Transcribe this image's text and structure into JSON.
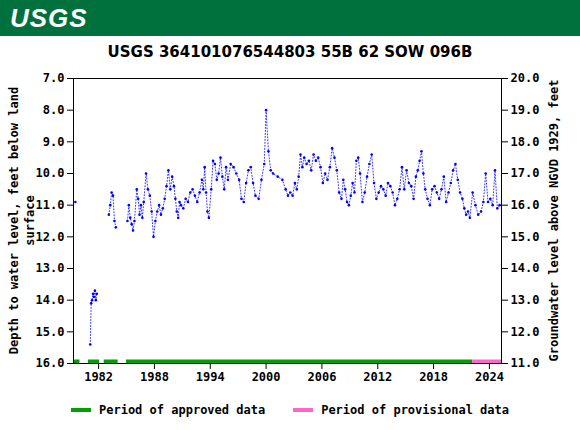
{
  "header": {
    "text": "USGS",
    "color": "#00713d"
  },
  "chart_data": {
    "type": "line",
    "title": "USGS 364101076544803 55B 62 SOW 096B",
    "y_label": "Depth to water level, feet below land\nsurface",
    "y2_label": "Groundwater level above NGVD 1929, feet",
    "xlim": [
      1979.3,
      2025.3
    ],
    "xticks": [
      1982,
      1988,
      1994,
      2000,
      2006,
      2012,
      2018,
      2024
    ],
    "ylim": [
      16,
      7
    ],
    "yticks": [
      {
        "value": 7,
        "label": "7.0"
      },
      {
        "value": 8,
        "label": "8.0"
      },
      {
        "value": 9,
        "label": "9.0"
      },
      {
        "value": 10,
        "label": "10.0"
      },
      {
        "value": 11,
        "label": "11.0"
      },
      {
        "value": 12,
        "label": "12.0"
      },
      {
        "value": 13,
        "label": "13.0"
      },
      {
        "value": 14,
        "label": "14.0"
      },
      {
        "value": 15,
        "label": "15.0"
      },
      {
        "value": 16,
        "label": "16.0"
      }
    ],
    "y2lim": [
      11,
      20
    ],
    "y2ticks": [
      {
        "value": 11,
        "label": "11.0"
      },
      {
        "value": 12,
        "label": "12.0"
      },
      {
        "value": 13,
        "label": "13.0"
      },
      {
        "value": 14,
        "label": "14.0"
      },
      {
        "value": 15,
        "label": "15.0"
      },
      {
        "value": 16,
        "label": "16.0"
      },
      {
        "value": 17,
        "label": "17.0"
      },
      {
        "value": 18,
        "label": "18.0"
      },
      {
        "value": 19,
        "label": "19.0"
      },
      {
        "value": 20,
        "label": "20.0"
      }
    ],
    "grid": false,
    "x": [
      1979.5,
      1980.2,
      1981.1,
      1981.2,
      1981.3,
      1981.4,
      1981.5,
      1981.6,
      1981.7,
      1981.8,
      1982.5,
      1983.1,
      1983.25,
      1983.4,
      1983.55,
      1983.7,
      1983.85,
      1984.5,
      1985.1,
      1985.25,
      1985.4,
      1985.55,
      1985.7,
      1985.85,
      1986.1,
      1986.25,
      1986.4,
      1986.55,
      1986.7,
      1986.85,
      1987.1,
      1987.3,
      1987.5,
      1987.7,
      1987.9,
      1988.1,
      1988.3,
      1988.5,
      1988.7,
      1988.9,
      1989.1,
      1989.3,
      1989.5,
      1989.7,
      1989.9,
      1990.1,
      1990.25,
      1990.4,
      1990.55,
      1990.7,
      1990.85,
      1991.1,
      1991.35,
      1991.6,
      1991.85,
      1992.1,
      1992.35,
      1992.6,
      1992.85,
      1993.1,
      1993.25,
      1993.4,
      1993.55,
      1993.7,
      1993.85,
      1994.1,
      1994.3,
      1994.5,
      1994.7,
      1994.9,
      1995.1,
      1995.3,
      1995.5,
      1995.7,
      1995.9,
      1996.2,
      1996.5,
      1996.8,
      1997.1,
      1997.35,
      1997.6,
      1997.85,
      1998.1,
      1998.35,
      1998.6,
      1998.85,
      1999.2,
      1999.5,
      1999.8,
      2000.0,
      2000.25,
      2000.5,
      2000.75,
      2001.25,
      2001.75,
      2002.1,
      2002.35,
      2002.6,
      2002.85,
      2003.1,
      2003.3,
      2003.5,
      2003.7,
      2003.9,
      2004.1,
      2004.35,
      2004.6,
      2004.85,
      2005.1,
      2005.35,
      2005.6,
      2005.85,
      2006.1,
      2006.35,
      2006.6,
      2006.85,
      2007.1,
      2007.35,
      2007.6,
      2007.85,
      2008.1,
      2008.3,
      2008.5,
      2008.7,
      2008.9,
      2009.1,
      2009.3,
      2009.5,
      2009.7,
      2009.9,
      2010.1,
      2010.35,
      2010.6,
      2010.85,
      2011.1,
      2011.35,
      2011.6,
      2011.85,
      2012.1,
      2012.35,
      2012.6,
      2012.85,
      2013.1,
      2013.35,
      2013.6,
      2013.85,
      2014.1,
      2014.35,
      2014.6,
      2014.85,
      2015.1,
      2015.35,
      2015.6,
      2015.85,
      2016.1,
      2016.3,
      2016.5,
      2016.7,
      2016.9,
      2017.1,
      2017.35,
      2017.6,
      2017.85,
      2018.1,
      2018.35,
      2018.6,
      2018.85,
      2019.1,
      2019.35,
      2019.6,
      2019.85,
      2020.1,
      2020.35,
      2020.6,
      2020.85,
      2021.1,
      2021.3,
      2021.5,
      2021.7,
      2021.9,
      2022.2,
      2022.5,
      2022.8,
      2023.1,
      2023.35,
      2023.6,
      2023.85,
      2024.1,
      2024.35,
      2024.6,
      2024.85,
      2025.1
    ],
    "series": [
      {
        "name": "Depth to water level",
        "color": "#0000ff",
        "marker": "dot",
        "line_style": "dotted",
        "values": [
          10.9,
          null,
          15.4,
          14.1,
          14.0,
          13.8,
          13.9,
          13.7,
          14.0,
          13.8,
          null,
          11.3,
          11.0,
          10.6,
          10.7,
          11.5,
          11.7,
          null,
          11.5,
          11.0,
          11.4,
          11.6,
          11.8,
          11.5,
          10.5,
          10.8,
          11.3,
          11.0,
          11.4,
          10.9,
          10.0,
          10.5,
          10.7,
          11.2,
          12.0,
          11.5,
          11.2,
          11.0,
          11.3,
          11.1,
          10.8,
          10.4,
          9.9,
          10.5,
          10.1,
          10.4,
          10.8,
          11.2,
          11.4,
          10.9,
          11.0,
          11.1,
          10.8,
          10.9,
          10.6,
          10.5,
          10.7,
          10.9,
          10.6,
          10.2,
          10.5,
          9.8,
          10.6,
          11.2,
          11.4,
          10.5,
          9.6,
          9.7,
          10.2,
          10.0,
          9.5,
          10.1,
          10.5,
          9.8,
          10.2,
          9.7,
          9.8,
          10.0,
          10.2,
          10.8,
          10.9,
          10.3,
          9.9,
          9.8,
          10.3,
          10.7,
          10.8,
          10.2,
          9.7,
          8.0,
          9.3,
          9.9,
          10.0,
          10.1,
          10.2,
          10.5,
          10.7,
          10.6,
          10.7,
          10.3,
          10.5,
          10.1,
          9.4,
          9.8,
          9.5,
          9.7,
          9.6,
          9.9,
          9.4,
          9.6,
          9.5,
          9.8,
          10.3,
          10.0,
          10.2,
          9.8,
          9.2,
          9.5,
          9.9,
          10.6,
          10.8,
          10.2,
          10.5,
          10.9,
          11.0,
          10.7,
          10.3,
          10.6,
          9.6,
          9.5,
          10.0,
          10.9,
          10.6,
          10.1,
          9.7,
          9.4,
          10.3,
          10.8,
          10.6,
          10.4,
          10.5,
          10.7,
          10.3,
          10.4,
          10.6,
          11.0,
          10.8,
          10.5,
          9.8,
          10.5,
          9.9,
          10.3,
          10.4,
          10.8,
          10.1,
          9.9,
          9.6,
          9.3,
          10.0,
          10.5,
          10.8,
          11.0,
          10.5,
          10.4,
          10.6,
          10.8,
          10.5,
          10.1,
          10.9,
          10.6,
          10.3,
          9.9,
          9.7,
          10.2,
          10.6,
          10.8,
          11.1,
          11.3,
          11.2,
          11.4,
          10.6,
          11.0,
          11.3,
          11.2,
          10.9,
          10.0,
          10.9,
          10.8,
          11.0,
          9.9,
          11.1,
          11.0
        ]
      }
    ],
    "periods": [
      {
        "name": "Period of approved data",
        "color": "#00a000",
        "ranges": [
          [
            1979.3,
            1980.0
          ],
          [
            1980.9,
            1982.1
          ],
          [
            1982.6,
            1984.1
          ],
          [
            1985.0,
            2022.2
          ]
        ]
      },
      {
        "name": "Period of provisional data",
        "color": "#ff66cc",
        "ranges": [
          [
            2022.2,
            2025.3
          ]
        ]
      }
    ]
  }
}
